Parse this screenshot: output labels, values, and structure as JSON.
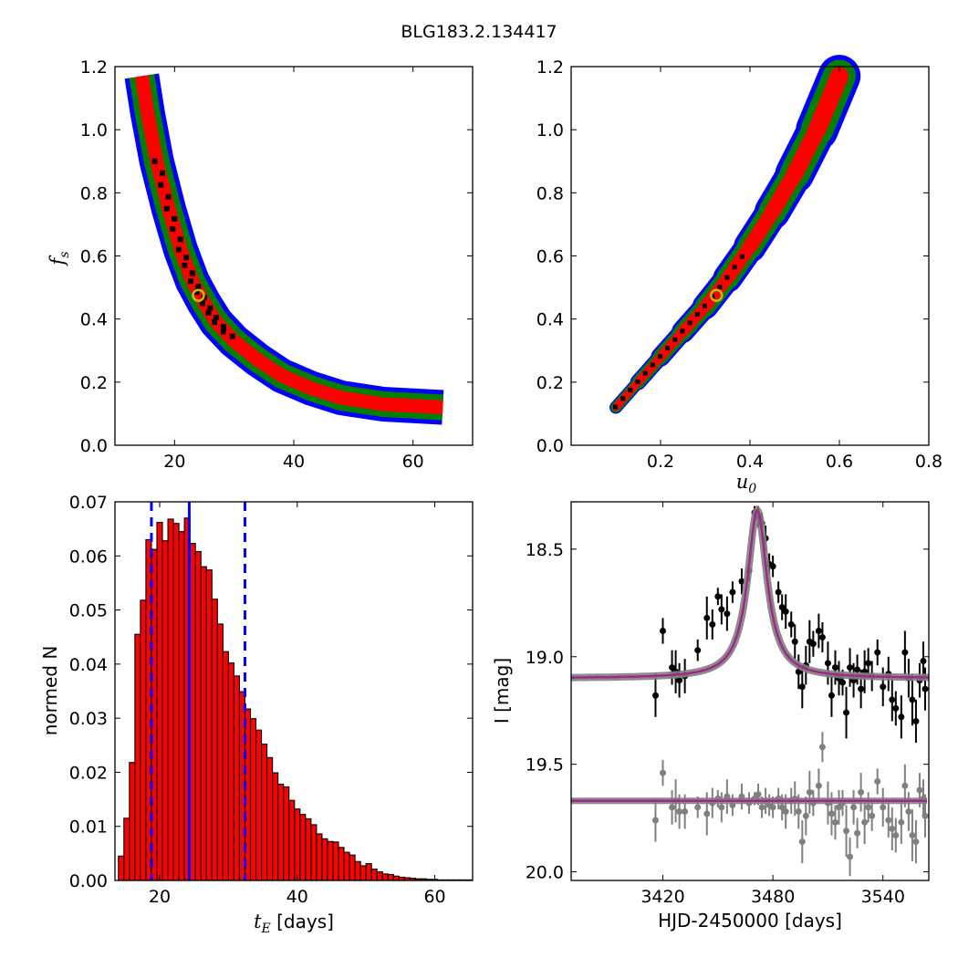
{
  "figure_title": "BLG183.2.134417",
  "colors": {
    "conf_3sigma": "#0000ff",
    "conf_2sigma": "#008000",
    "conf_1sigma": "#ff0000",
    "best_cells": "#000000",
    "marker_edge": "#bfbf00",
    "hist_fill": "#ff0000",
    "interval_line": "#0000ff",
    "model_line": "#a0288c",
    "model_band": "#808080",
    "data_main": "#000000",
    "data_ref": "#808080"
  },
  "chart_data": [
    {
      "id": "top-left",
      "type": "heatmap",
      "xlabel": "",
      "ylabel_main": "f",
      "ylabel_sub": "s",
      "xlim": [
        10,
        70
      ],
      "ylim": [
        0.0,
        1.2
      ],
      "xticks": [
        "20",
        "40",
        "60"
      ],
      "yticks": [
        "0.0",
        "0.2",
        "0.4",
        "0.6",
        "0.8",
        "1.0",
        "1.2"
      ],
      "regions": [
        "3 sigma (blue)",
        "2 sigma (green)",
        "1 sigma (red)",
        "best (black)"
      ],
      "ridge": [
        [
          14.5,
          1.17
        ],
        [
          15.5,
          1.05
        ],
        [
          17,
          0.9
        ],
        [
          19,
          0.75
        ],
        [
          21,
          0.62
        ],
        [
          23,
          0.52
        ],
        [
          25,
          0.45
        ],
        [
          27,
          0.39
        ],
        [
          30,
          0.33
        ],
        [
          34,
          0.27
        ],
        [
          38,
          0.22
        ],
        [
          43,
          0.18
        ],
        [
          48,
          0.15
        ],
        [
          55,
          0.13
        ],
        [
          65,
          0.12
        ]
      ],
      "best_fit": {
        "x": 24,
        "y": 0.475
      }
    },
    {
      "id": "top-right",
      "type": "heatmap",
      "xlabel_main": "u",
      "xlabel_sub": "0",
      "ylabel": "",
      "xlim": [
        0.0,
        0.8
      ],
      "ylim": [
        0.0,
        1.2
      ],
      "xticks": [
        "0.2",
        "0.4",
        "0.6",
        "0.8"
      ],
      "yticks": [
        "0.0",
        "0.2",
        "0.4",
        "0.6",
        "0.8",
        "1.0",
        "1.2"
      ],
      "regions": [
        "3 sigma (blue)",
        "2 sigma (green)",
        "1 sigma (red)",
        "best (black)"
      ],
      "ridge": [
        [
          0.1,
          0.12
        ],
        [
          0.15,
          0.2
        ],
        [
          0.2,
          0.28
        ],
        [
          0.25,
          0.36
        ],
        [
          0.3,
          0.44
        ],
        [
          0.35,
          0.53
        ],
        [
          0.4,
          0.63
        ],
        [
          0.45,
          0.74
        ],
        [
          0.5,
          0.86
        ],
        [
          0.55,
          1.0
        ],
        [
          0.6,
          1.17
        ]
      ],
      "best_fit": {
        "x": 0.325,
        "y": 0.475
      }
    },
    {
      "id": "bottom-left",
      "type": "bar",
      "xlabel_main": "t",
      "xlabel_sub": "E",
      "xlabel_rest": " [days]",
      "ylabel": "normed N",
      "xlim": [
        13.5,
        65.5
      ],
      "ylim": [
        0.0,
        0.07
      ],
      "xticks": [
        "20",
        "40",
        "60"
      ],
      "yticks": [
        "0.00",
        "0.01",
        "0.02",
        "0.03",
        "0.04",
        "0.05",
        "0.06",
        "0.07"
      ],
      "bin_start": 14,
      "bin_width": 0.8,
      "values": [
        0.0045,
        0.0115,
        0.0218,
        0.0455,
        0.0518,
        0.063,
        0.0612,
        0.0662,
        0.0628,
        0.0668,
        0.066,
        0.0645,
        0.067,
        0.0623,
        0.0608,
        0.058,
        0.0574,
        0.052,
        0.0474,
        0.0423,
        0.0402,
        0.0378,
        0.0349,
        0.0317,
        0.0299,
        0.0278,
        0.0252,
        0.0227,
        0.0199,
        0.0178,
        0.0173,
        0.0148,
        0.0132,
        0.0122,
        0.0114,
        0.0103,
        0.0086,
        0.0077,
        0.0072,
        0.0071,
        0.0061,
        0.0052,
        0.0047,
        0.0035,
        0.0027,
        0.0031,
        0.0021,
        0.0016,
        0.0012,
        0.0011,
        0.0008,
        0.0006,
        0.0005,
        0.0004,
        0.0003,
        0.0003,
        0.0002,
        0.0002,
        0.0001,
        0.0001,
        0.0001,
        0.0001,
        0.0001,
        0.0001,
        0.0001
      ],
      "vlines": [
        {
          "x": 18.8,
          "style": "dashed"
        },
        {
          "x": 24.3,
          "style": "solid"
        },
        {
          "x": 32.4,
          "style": "dashed"
        }
      ]
    },
    {
      "id": "bottom-right",
      "type": "scatter",
      "xlabel": "HJD-2450000 [days]",
      "ylabel": "I [mag]",
      "xlim": [
        3370,
        3565
      ],
      "ylim": [
        20.04,
        18.28
      ],
      "xticks": [
        "3420",
        "3480",
        "3540"
      ],
      "yticks": [
        "18.5",
        "19.0",
        "19.5",
        "20.0"
      ],
      "model": {
        "t0": 3471.5,
        "baseline": 19.1,
        "peak_drop": 0.78,
        "width": 6.5
      },
      "reference_level": 19.67,
      "series": [
        {
          "kind": "main",
          "points": [
            [
              3416,
              19.18,
              0.1
            ],
            [
              3420,
              18.88,
              0.06
            ],
            [
              3425,
              19.05,
              0.08
            ],
            [
              3427,
              19.07,
              0.1
            ],
            [
              3429,
              19.11,
              0.08
            ],
            [
              3432,
              19.09,
              0.08
            ],
            [
              3439,
              18.97,
              0.05
            ],
            [
              3444,
              18.82,
              0.1
            ],
            [
              3447,
              18.85,
              0.07
            ],
            [
              3450,
              18.72,
              0.04
            ],
            [
              3452,
              18.78,
              0.07
            ],
            [
              3455,
              18.8,
              0.08
            ],
            [
              3458,
              18.7,
              0.05
            ],
            [
              3463,
              18.65,
              0.06
            ],
            [
              3467,
              18.6,
              0.05
            ],
            [
              3470,
              18.33,
              0.03
            ],
            [
              3472,
              18.35,
              0.05
            ],
            [
              3474,
              18.38,
              0.05
            ],
            [
              3476,
              18.45,
              0.06
            ],
            [
              3478,
              18.57,
              0.05
            ],
            [
              3480,
              18.58,
              0.05
            ],
            [
              3483,
              18.7,
              0.05
            ],
            [
              3485,
              18.77,
              0.06
            ],
            [
              3487,
              18.79,
              0.08
            ],
            [
              3490,
              18.85,
              0.06
            ],
            [
              3492,
              18.93,
              0.08
            ],
            [
              3494,
              19.07,
              0.08
            ],
            [
              3496,
              19.14,
              0.1
            ],
            [
              3498,
              19.04,
              0.09
            ],
            [
              3500,
              18.93,
              0.1
            ],
            [
              3502,
              18.94,
              0.06
            ],
            [
              3505,
              18.88,
              0.08
            ],
            [
              3507,
              18.91,
              0.07
            ],
            [
              3510,
              19.03,
              0.1
            ],
            [
              3512,
              19.18,
              0.1
            ],
            [
              3514,
              19.05,
              0.08
            ],
            [
              3516,
              19.1,
              0.08
            ],
            [
              3518,
              19.12,
              0.06
            ],
            [
              3520,
              19.26,
              0.12
            ],
            [
              3522,
              19.05,
              0.09
            ],
            [
              3524,
              19.11,
              0.08
            ],
            [
              3526,
              19.06,
              0.07
            ],
            [
              3528,
              19.15,
              0.09
            ],
            [
              3530,
              19.07,
              0.1
            ],
            [
              3532,
              19.03,
              0.07
            ],
            [
              3534,
              19.09,
              0.07
            ],
            [
              3537,
              18.98,
              0.06
            ],
            [
              3540,
              19.14,
              0.09
            ],
            [
              3543,
              19.08,
              0.08
            ],
            [
              3545,
              19.2,
              0.1
            ],
            [
              3547,
              19.24,
              0.08
            ],
            [
              3550,
              19.28,
              0.1
            ],
            [
              3552,
              18.98,
              0.1
            ],
            [
              3554,
              19.1,
              0.09
            ],
            [
              3556,
              19.2,
              0.12
            ],
            [
              3558,
              19.3,
              0.1
            ],
            [
              3560,
              19.11,
              0.08
            ],
            [
              3562,
              19.02,
              0.09
            ],
            [
              3563,
              19.15,
              0.1
            ]
          ]
        },
        {
          "kind": "reference",
          "points": [
            [
              3416,
              19.76,
              0.1
            ],
            [
              3420,
              19.54,
              0.06
            ],
            [
              3425,
              19.7,
              0.08
            ],
            [
              3427,
              19.67,
              0.1
            ],
            [
              3429,
              19.72,
              0.08
            ],
            [
              3432,
              19.72,
              0.08
            ],
            [
              3439,
              19.7,
              0.05
            ],
            [
              3444,
              19.73,
              0.1
            ],
            [
              3447,
              19.68,
              0.07
            ],
            [
              3450,
              19.66,
              0.04
            ],
            [
              3452,
              19.7,
              0.07
            ],
            [
              3455,
              19.65,
              0.08
            ],
            [
              3458,
              19.69,
              0.05
            ],
            [
              3463,
              19.65,
              0.06
            ],
            [
              3467,
              19.68,
              0.05
            ],
            [
              3470,
              19.66,
              0.03
            ],
            [
              3472,
              19.64,
              0.05
            ],
            [
              3474,
              19.7,
              0.05
            ],
            [
              3476,
              19.67,
              0.06
            ],
            [
              3478,
              19.69,
              0.05
            ],
            [
              3480,
              19.7,
              0.05
            ],
            [
              3483,
              19.66,
              0.05
            ],
            [
              3485,
              19.7,
              0.06
            ],
            [
              3487,
              19.72,
              0.08
            ],
            [
              3490,
              19.67,
              0.06
            ],
            [
              3492,
              19.66,
              0.08
            ],
            [
              3494,
              19.72,
              0.08
            ],
            [
              3496,
              19.86,
              0.1
            ],
            [
              3498,
              19.74,
              0.09
            ],
            [
              3500,
              19.63,
              0.1
            ],
            [
              3502,
              19.68,
              0.06
            ],
            [
              3505,
              19.6,
              0.08
            ],
            [
              3507,
              19.42,
              0.07
            ],
            [
              3510,
              19.68,
              0.1
            ],
            [
              3512,
              19.73,
              0.1
            ],
            [
              3514,
              19.77,
              0.08
            ],
            [
              3516,
              19.7,
              0.08
            ],
            [
              3518,
              19.68,
              0.06
            ],
            [
              3520,
              19.81,
              0.12
            ],
            [
              3522,
              19.93,
              0.09
            ],
            [
              3524,
              19.7,
              0.08
            ],
            [
              3526,
              19.82,
              0.07
            ],
            [
              3528,
              19.63,
              0.09
            ],
            [
              3530,
              19.77,
              0.1
            ],
            [
              3532,
              19.7,
              0.07
            ],
            [
              3534,
              19.74,
              0.07
            ],
            [
              3537,
              19.58,
              0.06
            ],
            [
              3540,
              19.7,
              0.09
            ],
            [
              3543,
              19.76,
              0.08
            ],
            [
              3545,
              19.8,
              0.1
            ],
            [
              3547,
              19.83,
              0.08
            ],
            [
              3550,
              19.77,
              0.1
            ],
            [
              3552,
              19.6,
              0.1
            ],
            [
              3554,
              19.72,
              0.09
            ],
            [
              3556,
              19.83,
              0.12
            ],
            [
              3558,
              19.86,
              0.1
            ],
            [
              3560,
              19.62,
              0.08
            ],
            [
              3562,
              19.66,
              0.09
            ],
            [
              3563,
              19.74,
              0.1
            ]
          ]
        }
      ]
    }
  ]
}
